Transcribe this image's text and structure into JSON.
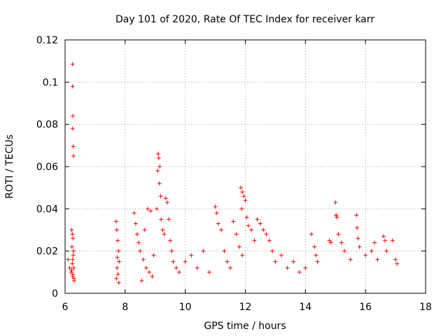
{
  "chart_data": {
    "type": "scatter",
    "title": "Day 101 of 2020, Rate Of TEC Index for receiver karr",
    "xlabel": "GPS time / hours",
    "ylabel": "ROTI / TECUs",
    "xlim": [
      6,
      18
    ],
    "ylim": [
      0,
      0.12
    ],
    "xticks": [
      6,
      8,
      10,
      12,
      14,
      16,
      18
    ],
    "yticks": [
      0,
      0.02,
      0.04,
      0.06,
      0.08,
      0.1,
      0.12
    ],
    "xtick_labels": [
      "6",
      "8",
      "10",
      "12",
      "14",
      "16",
      "18"
    ],
    "ytick_labels": [
      "0",
      "0.02",
      "0.04",
      "0.06",
      "0.08",
      "0.1",
      "0.12"
    ],
    "grid": true,
    "marker": "+",
    "color": "#ff0000",
    "series": [
      {
        "name": "ROTI",
        "x": [
          6.25,
          6.25,
          6.26,
          6.25,
          6.27,
          6.28,
          6.22,
          6.24,
          6.26,
          6.23,
          6.28,
          6.27,
          6.25,
          6.24,
          6.29,
          6.22,
          6.26,
          6.3,
          6.1,
          6.15,
          6.2,
          6.25,
          6.3,
          7.7,
          7.72,
          7.75,
          7.78,
          7.8,
          7.73,
          7.76,
          7.71,
          7.79,
          7.74,
          8.3,
          8.35,
          8.4,
          8.45,
          8.5,
          8.6,
          8.7,
          8.8,
          8.9,
          8.75,
          8.85,
          8.55,
          8.65,
          8.95,
          9.1,
          9.12,
          9.15,
          9.08,
          9.14,
          9.18,
          9.05,
          9.2,
          9.25,
          9.3,
          9.35,
          9.4,
          9.45,
          9.5,
          9.55,
          9.6,
          9.7,
          9.8,
          10.0,
          10.2,
          10.4,
          10.6,
          10.8,
          11.0,
          11.05,
          11.1,
          11.2,
          11.3,
          11.4,
          11.5,
          11.6,
          11.7,
          11.8,
          11.9,
          11.85,
          11.9,
          11.95,
          12.0,
          11.88,
          12.05,
          12.1,
          12.2,
          12.3,
          12.4,
          12.5,
          12.6,
          12.7,
          12.8,
          12.9,
          13.0,
          13.2,
          13.4,
          13.6,
          13.8,
          14.0,
          14.2,
          14.3,
          14.35,
          14.4,
          14.8,
          14.85,
          15.0,
          15.02,
          15.05,
          15.1,
          15.2,
          15.3,
          15.5,
          15.7,
          15.72,
          15.75,
          15.8,
          16.0,
          16.2,
          16.3,
          16.4,
          16.6,
          16.65,
          16.7,
          16.9,
          17.0,
          17.05
        ],
        "y": [
          0.1085,
          0.098,
          0.084,
          0.078,
          0.0695,
          0.065,
          0.03,
          0.028,
          0.026,
          0.022,
          0.02,
          0.018,
          0.016,
          0.014,
          0.012,
          0.011,
          0.009,
          0.007,
          0.016,
          0.012,
          0.01,
          0.008,
          0.006,
          0.034,
          0.03,
          0.025,
          0.02,
          0.015,
          0.012,
          0.009,
          0.007,
          0.005,
          0.017,
          0.038,
          0.033,
          0.028,
          0.024,
          0.02,
          0.016,
          0.012,
          0.01,
          0.008,
          0.04,
          0.039,
          0.006,
          0.03,
          0.018,
          0.066,
          0.064,
          0.06,
          0.058,
          0.052,
          0.046,
          0.04,
          0.035,
          0.03,
          0.028,
          0.045,
          0.043,
          0.035,
          0.025,
          0.02,
          0.015,
          0.012,
          0.01,
          0.015,
          0.018,
          0.012,
          0.02,
          0.01,
          0.041,
          0.038,
          0.033,
          0.03,
          0.02,
          0.015,
          0.012,
          0.034,
          0.028,
          0.022,
          0.018,
          0.05,
          0.048,
          0.046,
          0.044,
          0.04,
          0.036,
          0.032,
          0.03,
          0.025,
          0.035,
          0.033,
          0.03,
          0.028,
          0.025,
          0.02,
          0.015,
          0.018,
          0.012,
          0.015,
          0.01,
          0.012,
          0.028,
          0.022,
          0.018,
          0.015,
          0.025,
          0.024,
          0.043,
          0.037,
          0.036,
          0.028,
          0.024,
          0.02,
          0.016,
          0.037,
          0.031,
          0.026,
          0.022,
          0.018,
          0.02,
          0.024,
          0.016,
          0.027,
          0.025,
          0.02,
          0.025,
          0.016,
          0.014
        ]
      }
    ]
  }
}
